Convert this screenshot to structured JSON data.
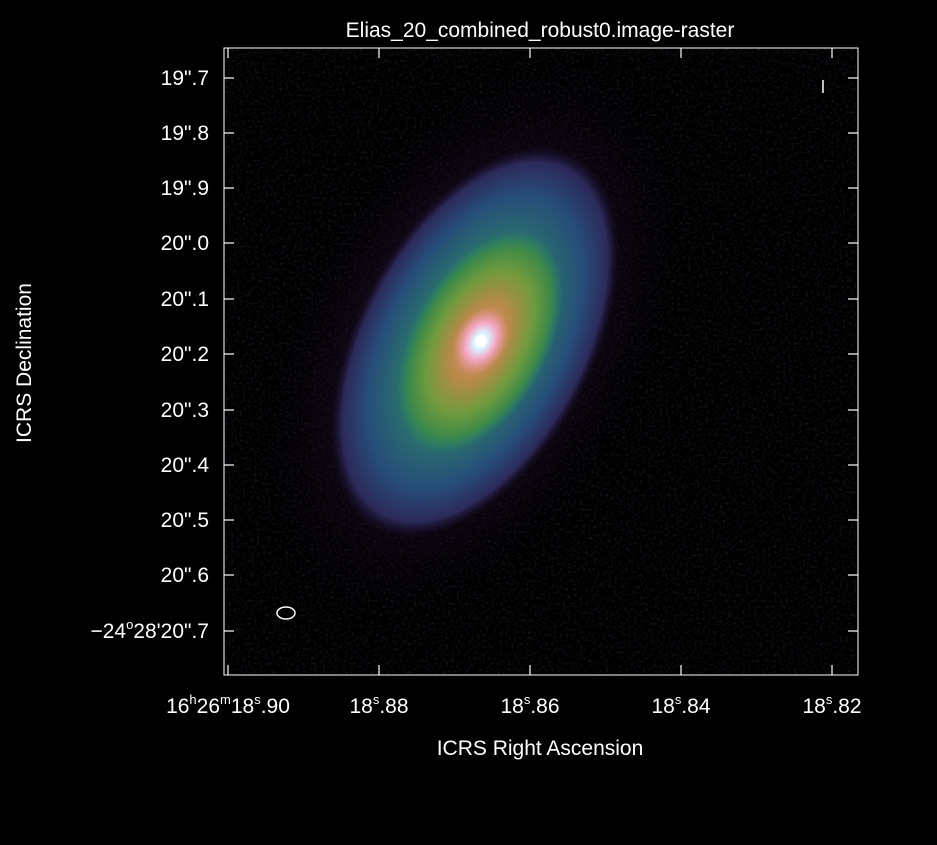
{
  "plot": {
    "title": "Elias_20_combined_robust0.image-raster",
    "xlabel": "ICRS Right Ascension",
    "ylabel": "ICRS Declination",
    "colormap": "cubehelix",
    "background_color": "#000000",
    "axis_color": "#ffffff"
  },
  "x_ticks": [
    {
      "hours": "16",
      "h_sup": "h",
      "minutes": "26",
      "m_sup": "m",
      "seconds": "18",
      "s_sup": "s",
      "frac": ".90"
    },
    {
      "seconds": "18",
      "s_sup": "s",
      "frac": ".88"
    },
    {
      "seconds": "18",
      "s_sup": "s",
      "frac": ".86"
    },
    {
      "seconds": "18",
      "s_sup": "s",
      "frac": ".84"
    },
    {
      "seconds": "18",
      "s_sup": "s",
      "frac": ".82"
    }
  ],
  "y_ticks": [
    {
      "label": "19\".7"
    },
    {
      "label": "19\".8"
    },
    {
      "label": "19\".9"
    },
    {
      "label": "20\".0"
    },
    {
      "label": "20\".1"
    },
    {
      "label": "20\".2"
    },
    {
      "label": "20\".3"
    },
    {
      "label": "20\".4"
    },
    {
      "label": "20\".5"
    },
    {
      "label": "20\".6"
    },
    {
      "degrees": "−24",
      "d_sup": "o",
      "rest": "28'20\".7"
    }
  ]
}
